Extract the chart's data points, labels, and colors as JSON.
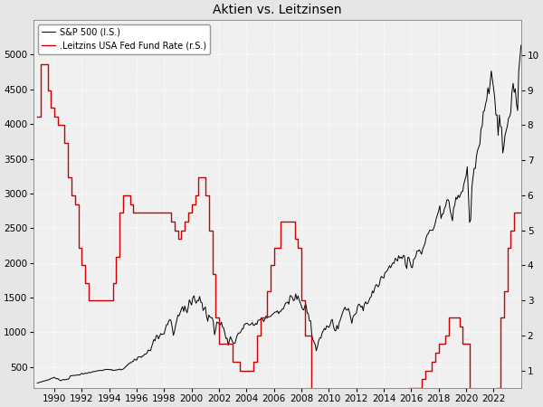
{
  "title": "Aktien vs. Leitzinsen",
  "legend_sp500": "S&P 500 (l.S.)",
  "legend_rate": ".Leitzins USA Fed Fund Rate (r.S.)",
  "sp500_color": "#000000",
  "rate_color": "#cc0000",
  "background_color": "#e6e6e6",
  "plot_bg_color": "#f0f0f0",
  "grid_color": "#ffffff",
  "ylim_left": [
    200,
    5500
  ],
  "ylim_right": [
    0.5,
    11
  ],
  "yticks_left": [
    500,
    1000,
    1500,
    2000,
    2500,
    3000,
    3500,
    4000,
    4500,
    5000
  ],
  "yticks_right": [
    1,
    2,
    3,
    4,
    5,
    6,
    7,
    8,
    9,
    10
  ],
  "xlim": [
    1988.5,
    2024.0
  ],
  "xticks": [
    1990,
    1992,
    1994,
    1996,
    1998,
    2000,
    2002,
    2004,
    2006,
    2008,
    2010,
    2012,
    2014,
    2016,
    2018,
    2020,
    2022
  ],
  "sp500_data": [
    [
      1988.75,
      270
    ],
    [
      1989.0,
      285
    ],
    [
      1989.08,
      290
    ],
    [
      1989.17,
      295
    ],
    [
      1989.25,
      300
    ],
    [
      1989.33,
      303
    ],
    [
      1989.42,
      307
    ],
    [
      1989.5,
      314
    ],
    [
      1989.58,
      318
    ],
    [
      1989.67,
      322
    ],
    [
      1989.75,
      337
    ],
    [
      1989.83,
      340
    ],
    [
      1990.0,
      353
    ],
    [
      1990.08,
      340
    ],
    [
      1990.17,
      330
    ],
    [
      1990.25,
      335
    ],
    [
      1990.33,
      320
    ],
    [
      1990.42,
      306
    ],
    [
      1990.5,
      307
    ],
    [
      1990.58,
      315
    ],
    [
      1990.67,
      322
    ],
    [
      1990.75,
      315
    ],
    [
      1990.83,
      322
    ],
    [
      1991.0,
      325
    ],
    [
      1991.08,
      340
    ],
    [
      1991.17,
      375
    ],
    [
      1991.25,
      375
    ],
    [
      1991.33,
      380
    ],
    [
      1991.42,
      378
    ],
    [
      1991.5,
      380
    ],
    [
      1991.58,
      385
    ],
    [
      1991.67,
      385
    ],
    [
      1991.75,
      387
    ],
    [
      1991.83,
      385
    ],
    [
      1992.0,
      410
    ],
    [
      1992.08,
      400
    ],
    [
      1992.17,
      403
    ],
    [
      1992.25,
      415
    ],
    [
      1992.33,
      408
    ],
    [
      1992.42,
      413
    ],
    [
      1992.5,
      424
    ],
    [
      1992.58,
      418
    ],
    [
      1992.67,
      422
    ],
    [
      1992.75,
      431
    ],
    [
      1992.83,
      435
    ],
    [
      1993.0,
      438
    ],
    [
      1993.08,
      443
    ],
    [
      1993.17,
      450
    ],
    [
      1993.25,
      447
    ],
    [
      1993.33,
      453
    ],
    [
      1993.42,
      452
    ],
    [
      1993.5,
      450
    ],
    [
      1993.58,
      458
    ],
    [
      1993.67,
      462
    ],
    [
      1993.75,
      468
    ],
    [
      1993.83,
      466
    ],
    [
      1994.0,
      466
    ],
    [
      1994.08,
      458
    ],
    [
      1994.17,
      467
    ],
    [
      1994.25,
      450
    ],
    [
      1994.33,
      454
    ],
    [
      1994.42,
      456
    ],
    [
      1994.5,
      458
    ],
    [
      1994.58,
      462
    ],
    [
      1994.67,
      463
    ],
    [
      1994.75,
      472
    ],
    [
      1994.83,
      460
    ],
    [
      1995.0,
      470
    ],
    [
      1995.08,
      482
    ],
    [
      1995.17,
      500
    ],
    [
      1995.25,
      515
    ],
    [
      1995.33,
      532
    ],
    [
      1995.42,
      546
    ],
    [
      1995.5,
      562
    ],
    [
      1995.58,
      561
    ],
    [
      1995.67,
      580
    ],
    [
      1995.75,
      584
    ],
    [
      1995.83,
      615
    ],
    [
      1996.0,
      600
    ],
    [
      1996.08,
      645
    ],
    [
      1996.17,
      645
    ],
    [
      1996.25,
      650
    ],
    [
      1996.33,
      639
    ],
    [
      1996.42,
      660
    ],
    [
      1996.5,
      665
    ],
    [
      1996.58,
      687
    ],
    [
      1996.67,
      687
    ],
    [
      1996.75,
      705
    ],
    [
      1996.83,
      745
    ],
    [
      1997.0,
      736
    ],
    [
      1997.08,
      791
    ],
    [
      1997.17,
      848
    ],
    [
      1997.25,
      897
    ],
    [
      1997.33,
      878
    ],
    [
      1997.42,
      955
    ],
    [
      1997.5,
      954
    ],
    [
      1997.58,
      906
    ],
    [
      1997.67,
      947
    ],
    [
      1997.75,
      983
    ],
    [
      1997.83,
      970
    ],
    [
      1998.0,
      980
    ],
    [
      1998.08,
      1050
    ],
    [
      1998.17,
      1111
    ],
    [
      1998.25,
      1111
    ],
    [
      1998.33,
      1166
    ],
    [
      1998.42,
      1186
    ],
    [
      1998.5,
      1166
    ],
    [
      1998.58,
      1074
    ],
    [
      1998.67,
      957
    ],
    [
      1998.75,
      1017
    ],
    [
      1998.83,
      1099
    ],
    [
      1999.0,
      1248
    ],
    [
      1999.08,
      1238
    ],
    [
      1999.17,
      1286
    ],
    [
      1999.25,
      1335
    ],
    [
      1999.33,
      1372
    ],
    [
      1999.42,
      1301
    ],
    [
      1999.5,
      1380
    ],
    [
      1999.58,
      1320
    ],
    [
      1999.67,
      1283
    ],
    [
      1999.75,
      1362
    ],
    [
      1999.83,
      1469
    ],
    [
      2000.0,
      1394
    ],
    [
      2000.08,
      1498
    ],
    [
      2000.17,
      1527
    ],
    [
      2000.25,
      1452
    ],
    [
      2000.33,
      1420
    ],
    [
      2000.42,
      1462
    ],
    [
      2000.5,
      1455
    ],
    [
      2000.58,
      1517
    ],
    [
      2000.67,
      1436
    ],
    [
      2000.75,
      1429
    ],
    [
      2000.83,
      1315
    ],
    [
      2001.0,
      1366
    ],
    [
      2001.08,
      1239
    ],
    [
      2001.17,
      1160
    ],
    [
      2001.25,
      1249
    ],
    [
      2001.33,
      1224
    ],
    [
      2001.42,
      1211
    ],
    [
      2001.5,
      1211
    ],
    [
      2001.58,
      1148
    ],
    [
      2001.67,
      965
    ],
    [
      2001.75,
      1040
    ],
    [
      2001.83,
      1148
    ],
    [
      2002.0,
      1130
    ],
    [
      2002.08,
      1107
    ],
    [
      2002.17,
      1147
    ],
    [
      2002.25,
      1076
    ],
    [
      2002.33,
      1067
    ],
    [
      2002.42,
      989
    ],
    [
      2002.5,
      911
    ],
    [
      2002.58,
      916
    ],
    [
      2002.67,
      815
    ],
    [
      2002.75,
      885
    ],
    [
      2002.83,
      936
    ],
    [
      2003.0,
      855
    ],
    [
      2003.08,
      841
    ],
    [
      2003.17,
      848
    ],
    [
      2003.25,
      917
    ],
    [
      2003.33,
      963
    ],
    [
      2003.42,
      991
    ],
    [
      2003.5,
      990
    ],
    [
      2003.58,
      1008
    ],
    [
      2003.67,
      1050
    ],
    [
      2003.75,
      1050
    ],
    [
      2003.83,
      1112
    ],
    [
      2004.0,
      1132
    ],
    [
      2004.08,
      1126
    ],
    [
      2004.17,
      1107
    ],
    [
      2004.25,
      1107
    ],
    [
      2004.33,
      1120
    ],
    [
      2004.42,
      1140
    ],
    [
      2004.5,
      1101
    ],
    [
      2004.58,
      1104
    ],
    [
      2004.67,
      1130
    ],
    [
      2004.75,
      1114
    ],
    [
      2004.83,
      1173
    ],
    [
      2005.0,
      1181
    ],
    [
      2005.08,
      1203
    ],
    [
      2005.17,
      1191
    ],
    [
      2005.25,
      1156
    ],
    [
      2005.33,
      1191
    ],
    [
      2005.42,
      1234
    ],
    [
      2005.5,
      1234
    ],
    [
      2005.58,
      1220
    ],
    [
      2005.67,
      1228
    ],
    [
      2005.75,
      1228
    ],
    [
      2005.83,
      1249
    ],
    [
      2006.0,
      1280
    ],
    [
      2006.08,
      1294
    ],
    [
      2006.17,
      1294
    ],
    [
      2006.25,
      1310
    ],
    [
      2006.33,
      1270
    ],
    [
      2006.42,
      1303
    ],
    [
      2006.5,
      1303
    ],
    [
      2006.58,
      1335
    ],
    [
      2006.67,
      1335
    ],
    [
      2006.75,
      1377
    ],
    [
      2006.83,
      1418
    ],
    [
      2007.0,
      1438
    ],
    [
      2007.08,
      1406
    ],
    [
      2007.17,
      1530
    ],
    [
      2007.25,
      1526
    ],
    [
      2007.33,
      1503
    ],
    [
      2007.42,
      1455
    ],
    [
      2007.5,
      1473
    ],
    [
      2007.58,
      1554
    ],
    [
      2007.67,
      1474
    ],
    [
      2007.75,
      1527
    ],
    [
      2007.83,
      1468
    ],
    [
      2008.0,
      1378
    ],
    [
      2008.08,
      1331
    ],
    [
      2008.17,
      1323
    ],
    [
      2008.25,
      1385
    ],
    [
      2008.33,
      1400
    ],
    [
      2008.42,
      1280
    ],
    [
      2008.5,
      1267
    ],
    [
      2008.58,
      1166
    ],
    [
      2008.67,
      1166
    ],
    [
      2008.75,
      968
    ],
    [
      2008.83,
      897
    ],
    [
      2009.0,
      825
    ],
    [
      2009.08,
      735
    ],
    [
      2009.17,
      797
    ],
    [
      2009.25,
      879
    ],
    [
      2009.33,
      920
    ],
    [
      2009.42,
      920
    ],
    [
      2009.5,
      987
    ],
    [
      2009.58,
      1020
    ],
    [
      2009.67,
      1057
    ],
    [
      2009.75,
      1036
    ],
    [
      2009.83,
      1095
    ],
    [
      2010.0,
      1073
    ],
    [
      2010.08,
      1104
    ],
    [
      2010.17,
      1169
    ],
    [
      2010.25,
      1187
    ],
    [
      2010.33,
      1089
    ],
    [
      2010.42,
      1030
    ],
    [
      2010.5,
      1022
    ],
    [
      2010.58,
      1101
    ],
    [
      2010.67,
      1049
    ],
    [
      2010.75,
      1141
    ],
    [
      2010.83,
      1180
    ],
    [
      2011.0,
      1286
    ],
    [
      2011.08,
      1327
    ],
    [
      2011.17,
      1363
    ],
    [
      2011.25,
      1326
    ],
    [
      2011.33,
      1320
    ],
    [
      2011.42,
      1345
    ],
    [
      2011.5,
      1292
    ],
    [
      2011.58,
      1218
    ],
    [
      2011.67,
      1131
    ],
    [
      2011.75,
      1215
    ],
    [
      2011.83,
      1247
    ],
    [
      2012.0,
      1278
    ],
    [
      2012.08,
      1366
    ],
    [
      2012.17,
      1408
    ],
    [
      2012.25,
      1397
    ],
    [
      2012.33,
      1362
    ],
    [
      2012.42,
      1379
    ],
    [
      2012.5,
      1310
    ],
    [
      2012.58,
      1403
    ],
    [
      2012.67,
      1440
    ],
    [
      2012.75,
      1412
    ],
    [
      2012.83,
      1416
    ],
    [
      2013.0,
      1498
    ],
    [
      2013.08,
      1514
    ],
    [
      2013.17,
      1597
    ],
    [
      2013.25,
      1569
    ],
    [
      2013.33,
      1631
    ],
    [
      2013.42,
      1685
    ],
    [
      2013.5,
      1685
    ],
    [
      2013.58,
      1656
    ],
    [
      2013.67,
      1682
    ],
    [
      2013.75,
      1772
    ],
    [
      2013.83,
      1806
    ],
    [
      2014.0,
      1782
    ],
    [
      2014.08,
      1859
    ],
    [
      2014.17,
      1872
    ],
    [
      2014.25,
      1890
    ],
    [
      2014.33,
      1924
    ],
    [
      2014.42,
      1960
    ],
    [
      2014.5,
      1930
    ],
    [
      2014.58,
      1972
    ],
    [
      2014.67,
      2003
    ],
    [
      2014.75,
      1994
    ],
    [
      2014.83,
      2068
    ],
    [
      2015.0,
      2028
    ],
    [
      2015.08,
      2105
    ],
    [
      2015.17,
      2068
    ],
    [
      2015.25,
      2086
    ],
    [
      2015.33,
      2063
    ],
    [
      2015.42,
      2108
    ],
    [
      2015.5,
      2103
    ],
    [
      2015.58,
      1972
    ],
    [
      2015.67,
      1920
    ],
    [
      2015.75,
      2079
    ],
    [
      2015.83,
      2080
    ],
    [
      2016.0,
      1940
    ],
    [
      2016.08,
      1932
    ],
    [
      2016.17,
      2050
    ],
    [
      2016.25,
      2065
    ],
    [
      2016.33,
      2099
    ],
    [
      2016.42,
      2173
    ],
    [
      2016.5,
      2170
    ],
    [
      2016.58,
      2190
    ],
    [
      2016.67,
      2157
    ],
    [
      2016.75,
      2126
    ],
    [
      2016.83,
      2198
    ],
    [
      2017.0,
      2279
    ],
    [
      2017.08,
      2363
    ],
    [
      2017.17,
      2411
    ],
    [
      2017.25,
      2423
    ],
    [
      2017.33,
      2470
    ],
    [
      2017.42,
      2470
    ],
    [
      2017.5,
      2470
    ],
    [
      2017.58,
      2471
    ],
    [
      2017.67,
      2519
    ],
    [
      2017.75,
      2575
    ],
    [
      2017.83,
      2648
    ],
    [
      2018.0,
      2754
    ],
    [
      2018.08,
      2824
    ],
    [
      2018.17,
      2641
    ],
    [
      2018.25,
      2702
    ],
    [
      2018.33,
      2705
    ],
    [
      2018.42,
      2786
    ],
    [
      2018.5,
      2816
    ],
    [
      2018.58,
      2901
    ],
    [
      2018.67,
      2914
    ],
    [
      2018.75,
      2885
    ],
    [
      2018.83,
      2760
    ],
    [
      2019.0,
      2607
    ],
    [
      2019.08,
      2784
    ],
    [
      2019.17,
      2834
    ],
    [
      2019.25,
      2946
    ],
    [
      2019.33,
      2918
    ],
    [
      2019.42,
      2976
    ],
    [
      2019.5,
      2942
    ],
    [
      2019.58,
      2980
    ],
    [
      2019.67,
      3026
    ],
    [
      2019.75,
      3031
    ],
    [
      2019.83,
      3140
    ],
    [
      2020.0,
      3258
    ],
    [
      2020.08,
      3386
    ],
    [
      2020.17,
      2954
    ],
    [
      2020.25,
      2584
    ],
    [
      2020.33,
      2626
    ],
    [
      2020.42,
      3100
    ],
    [
      2020.5,
      3232
    ],
    [
      2020.58,
      3363
    ],
    [
      2020.67,
      3363
    ],
    [
      2020.75,
      3537
    ],
    [
      2020.83,
      3621
    ],
    [
      2021.0,
      3714
    ],
    [
      2021.08,
      3932
    ],
    [
      2021.17,
      3973
    ],
    [
      2021.25,
      4181
    ],
    [
      2021.33,
      4193
    ],
    [
      2021.42,
      4297
    ],
    [
      2021.5,
      4352
    ],
    [
      2021.58,
      4523
    ],
    [
      2021.67,
      4436
    ],
    [
      2021.75,
      4605
    ],
    [
      2021.83,
      4766
    ],
    [
      2022.0,
      4515
    ],
    [
      2022.08,
      4374
    ],
    [
      2022.17,
      4131
    ],
    [
      2022.25,
      4132
    ],
    [
      2022.33,
      3839
    ],
    [
      2022.42,
      4132
    ],
    [
      2022.5,
      3966
    ],
    [
      2022.58,
      3955
    ],
    [
      2022.67,
      3585
    ],
    [
      2022.75,
      3678
    ],
    [
      2022.83,
      3840
    ],
    [
      2023.0,
      3970
    ],
    [
      2023.08,
      4080
    ],
    [
      2023.17,
      4110
    ],
    [
      2023.25,
      4169
    ],
    [
      2023.33,
      4450
    ],
    [
      2023.42,
      4588
    ],
    [
      2023.5,
      4458
    ],
    [
      2023.58,
      4508
    ],
    [
      2023.67,
      4288
    ],
    [
      2023.75,
      4194
    ],
    [
      2023.83,
      4769
    ],
    [
      2024.0,
      5137
    ]
  ],
  "rate_data": [
    [
      1988.75,
      8.25
    ],
    [
      1989.0,
      9.75
    ],
    [
      1989.25,
      9.75
    ],
    [
      1989.5,
      9.0
    ],
    [
      1989.75,
      8.5
    ],
    [
      1990.0,
      8.25
    ],
    [
      1990.25,
      8.0
    ],
    [
      1990.5,
      8.0
    ],
    [
      1990.75,
      7.5
    ],
    [
      1991.0,
      6.5
    ],
    [
      1991.25,
      6.0
    ],
    [
      1991.5,
      5.75
    ],
    [
      1991.75,
      4.5
    ],
    [
      1992.0,
      4.0
    ],
    [
      1992.25,
      3.5
    ],
    [
      1992.5,
      3.0
    ],
    [
      1993.0,
      3.0
    ],
    [
      1993.5,
      3.0
    ],
    [
      1994.0,
      3.0
    ],
    [
      1994.25,
      3.5
    ],
    [
      1994.5,
      4.25
    ],
    [
      1994.75,
      5.5
    ],
    [
      1995.0,
      6.0
    ],
    [
      1995.25,
      6.0
    ],
    [
      1995.5,
      5.75
    ],
    [
      1995.75,
      5.5
    ],
    [
      1996.0,
      5.5
    ],
    [
      1997.0,
      5.5
    ],
    [
      1998.0,
      5.5
    ],
    [
      1998.5,
      5.25
    ],
    [
      1998.75,
      5.0
    ],
    [
      1999.0,
      4.75
    ],
    [
      1999.25,
      5.0
    ],
    [
      1999.5,
      5.25
    ],
    [
      1999.75,
      5.5
    ],
    [
      2000.0,
      5.75
    ],
    [
      2000.25,
      6.0
    ],
    [
      2000.5,
      6.5
    ],
    [
      2000.75,
      6.5
    ],
    [
      2001.0,
      6.0
    ],
    [
      2001.25,
      5.0
    ],
    [
      2001.5,
      3.75
    ],
    [
      2001.75,
      2.5
    ],
    [
      2002.0,
      1.75
    ],
    [
      2002.5,
      1.75
    ],
    [
      2003.0,
      1.25
    ],
    [
      2003.5,
      1.0
    ],
    [
      2004.0,
      1.0
    ],
    [
      2004.5,
      1.25
    ],
    [
      2004.75,
      2.0
    ],
    [
      2005.0,
      2.5
    ],
    [
      2005.5,
      3.25
    ],
    [
      2005.75,
      4.0
    ],
    [
      2006.0,
      4.5
    ],
    [
      2006.5,
      5.25
    ],
    [
      2007.0,
      5.25
    ],
    [
      2007.5,
      4.75
    ],
    [
      2007.75,
      4.5
    ],
    [
      2008.0,
      3.0
    ],
    [
      2008.25,
      2.0
    ],
    [
      2008.5,
      2.0
    ],
    [
      2008.75,
      0.25
    ],
    [
      2009.0,
      0.25
    ],
    [
      2015.75,
      0.5
    ],
    [
      2016.0,
      0.5
    ],
    [
      2016.75,
      0.75
    ],
    [
      2017.0,
      1.0
    ],
    [
      2017.5,
      1.25
    ],
    [
      2017.75,
      1.5
    ],
    [
      2018.0,
      1.75
    ],
    [
      2018.25,
      1.75
    ],
    [
      2018.5,
      2.0
    ],
    [
      2018.75,
      2.5
    ],
    [
      2019.0,
      2.5
    ],
    [
      2019.5,
      2.25
    ],
    [
      2019.75,
      1.75
    ],
    [
      2020.0,
      1.75
    ],
    [
      2020.25,
      0.25
    ],
    [
      2022.0,
      0.25
    ],
    [
      2022.25,
      0.5
    ],
    [
      2022.5,
      2.5
    ],
    [
      2022.75,
      3.25
    ],
    [
      2023.0,
      4.5
    ],
    [
      2023.25,
      5.0
    ],
    [
      2023.5,
      5.5
    ],
    [
      2024.0,
      5.5
    ]
  ]
}
